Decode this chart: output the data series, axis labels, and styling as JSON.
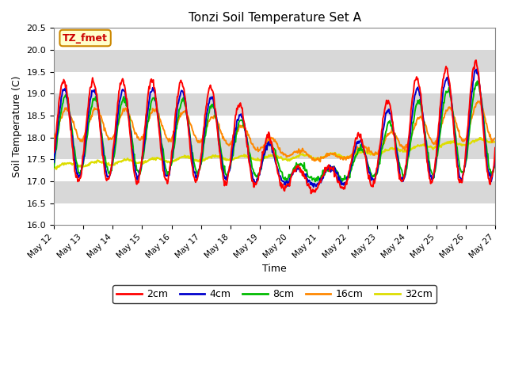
{
  "title": "Tonzi Soil Temperature Set A",
  "xlabel": "Time",
  "ylabel": "Soil Temperature (C)",
  "ylim": [
    16.0,
    20.5
  ],
  "background_color": "#ffffff",
  "plot_bg_color": "#d8d8d8",
  "legend_label": "TZ_fmet",
  "series_colors": {
    "2cm": "#ff0000",
    "4cm": "#0000cc",
    "8cm": "#00bb00",
    "16cm": "#ff8800",
    "32cm": "#dddd00"
  },
  "stripe_color": "#f0f0f0",
  "xtick_labels": [
    "May 12",
    "May 13",
    "May 14",
    "May 15",
    "May 16",
    "May 17",
    "May 18",
    "May 19",
    "May 20",
    "May 21",
    "May 22",
    "May 23",
    "May 24",
    "May 25",
    "May 26",
    "May 27"
  ]
}
